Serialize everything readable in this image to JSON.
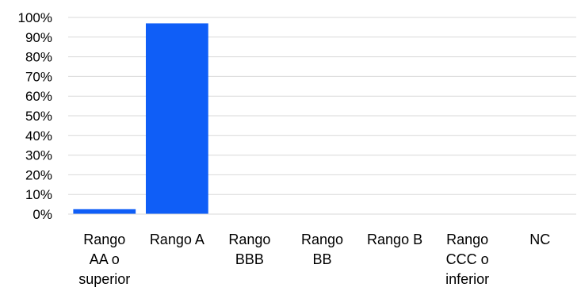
{
  "chart_data": {
    "type": "bar",
    "categories": [
      [
        "Rango",
        "AA o",
        "superior"
      ],
      [
        "Rango A"
      ],
      [
        "Rango",
        "BBB"
      ],
      [
        "Rango",
        "BB"
      ],
      [
        "Rango B"
      ],
      [
        "Rango",
        "CCC o",
        "inferior"
      ],
      [
        "NC"
      ]
    ],
    "values": [
      2.5,
      97,
      0,
      0,
      0,
      0,
      0
    ],
    "ylim": [
      0,
      100
    ],
    "yticks": [
      "0%",
      "10%",
      "20%",
      "30%",
      "40%",
      "50%",
      "60%",
      "70%",
      "80%",
      "90%",
      "100%"
    ],
    "grid": true,
    "bar_color": "#0f5ef7",
    "grid_color": "#d9d9d9",
    "title": "",
    "xlabel": "",
    "ylabel": ""
  }
}
